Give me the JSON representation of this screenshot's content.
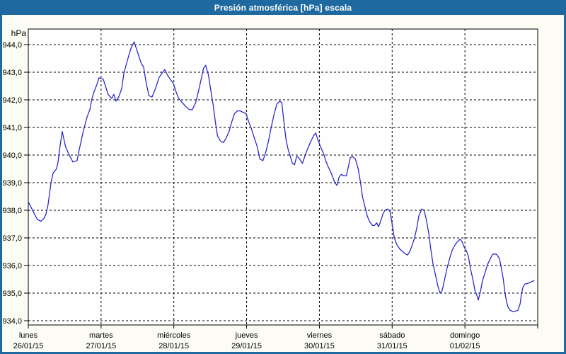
{
  "window": {
    "title": "Presión atmosférica [hPa] escala"
  },
  "colors": {
    "titlebar_bg": "#1e6aa0",
    "frame": "#1e6aa0",
    "content_bg": "#fcfcf4",
    "plot_bg": "#fefefe",
    "line": "#2323c8",
    "grid": "#000000",
    "text": "#000000",
    "title_text": "#ffffff"
  },
  "chart_data": {
    "type": "line",
    "title": "Presión atmosférica [hPa] escala",
    "unit_label": "hPa",
    "x_unit": "hours since lunes 26/01/15 00:00",
    "x_range_hours": [
      0,
      168
    ],
    "ylim": [
      934.0,
      944.0
    ],
    "grid": "dashed",
    "legend": "none",
    "yticks": [
      944,
      943,
      942,
      941,
      940,
      939,
      938,
      937,
      936,
      935,
      934
    ],
    "ytick_labels": [
      "944,0",
      "943,0",
      "942,0",
      "941,0",
      "940,0",
      "939,0",
      "938,0",
      "937,0",
      "936,0",
      "935,0",
      "934,0"
    ],
    "days": [
      {
        "name": "lunes",
        "date": "26/01/15"
      },
      {
        "name": "martes",
        "date": "27/01/15"
      },
      {
        "name": "miércoles",
        "date": "28/01/15"
      },
      {
        "name": "jueves",
        "date": "29/01/15"
      },
      {
        "name": "viernes",
        "date": "30/01/15"
      },
      {
        "name": "sábado",
        "date": "31/01/15"
      },
      {
        "name": "domingo",
        "date": "01/02/15"
      }
    ],
    "series": [
      {
        "name": "Presión atmosférica",
        "color": "#2323c8",
        "points": [
          [
            0,
            938.3
          ],
          [
            1.2,
            938.05
          ],
          [
            2.3,
            937.8
          ],
          [
            3,
            937.67
          ],
          [
            4.2,
            937.6
          ],
          [
            5.1,
            937.7
          ],
          [
            5.8,
            937.85
          ],
          [
            6.5,
            938.2
          ],
          [
            7.5,
            939
          ],
          [
            8.2,
            939.35
          ],
          [
            9.3,
            939.5
          ],
          [
            9.8,
            939.75
          ],
          [
            10.5,
            940.35
          ],
          [
            11.2,
            940.85
          ],
          [
            11.7,
            940.6
          ],
          [
            12.3,
            940.3
          ],
          [
            13.3,
            940.05
          ],
          [
            14,
            939.9
          ],
          [
            14.7,
            939.75
          ],
          [
            16.1,
            939.8
          ],
          [
            16.8,
            940.2
          ],
          [
            17.5,
            940.55
          ],
          [
            18.2,
            940.9
          ],
          [
            18.6,
            941.05
          ],
          [
            19.3,
            941.35
          ],
          [
            20.3,
            941.65
          ],
          [
            21,
            942.05
          ],
          [
            21.7,
            942.3
          ],
          [
            22.6,
            942.55
          ],
          [
            23.3,
            942.8
          ],
          [
            24.7,
            942.75
          ],
          [
            25.6,
            942.45
          ],
          [
            26.3,
            942.2
          ],
          [
            27.5,
            942.05
          ],
          [
            28.2,
            942.2
          ],
          [
            28.9,
            941.95
          ],
          [
            29.8,
            942.1
          ],
          [
            30.8,
            942.4
          ],
          [
            31.5,
            942.95
          ],
          [
            32.6,
            943.4
          ],
          [
            33.8,
            943.85
          ],
          [
            34.9,
            944.1
          ],
          [
            36.1,
            943.7
          ],
          [
            37.3,
            943.3
          ],
          [
            38,
            943.2
          ],
          [
            38.9,
            942.6
          ],
          [
            39.8,
            942.15
          ],
          [
            40.8,
            942.1
          ],
          [
            41.9,
            942.4
          ],
          [
            43.1,
            942.8
          ],
          [
            44.3,
            943
          ],
          [
            45,
            943.1
          ],
          [
            45.9,
            942.9
          ],
          [
            46.8,
            942.75
          ],
          [
            47.8,
            942.6
          ],
          [
            48.7,
            942.3
          ],
          [
            49.6,
            942.05
          ],
          [
            50.8,
            941.9
          ],
          [
            52,
            941.75
          ],
          [
            53.1,
            941.65
          ],
          [
            54.1,
            941.65
          ],
          [
            55.2,
            941.9
          ],
          [
            56.2,
            942.35
          ],
          [
            56.9,
            942.7
          ],
          [
            57.8,
            943.15
          ],
          [
            58.5,
            943.25
          ],
          [
            59.4,
            942.9
          ],
          [
            60.1,
            942.4
          ],
          [
            61,
            941.8
          ],
          [
            61.7,
            941.2
          ],
          [
            62.4,
            940.7
          ],
          [
            63.4,
            940.5
          ],
          [
            64.3,
            940.45
          ],
          [
            65.2,
            940.6
          ],
          [
            66.2,
            940.85
          ],
          [
            67.1,
            941.2
          ],
          [
            68,
            941.5
          ],
          [
            69,
            941.6
          ],
          [
            69.9,
            941.6
          ],
          [
            70.8,
            941.55
          ],
          [
            71.8,
            941.5
          ],
          [
            72.7,
            941.2
          ],
          [
            73.6,
            940.95
          ],
          [
            74.6,
            940.6
          ],
          [
            75.5,
            940.3
          ],
          [
            76.4,
            939.85
          ],
          [
            77.4,
            939.8
          ],
          [
            78.3,
            940.1
          ],
          [
            79.2,
            940.5
          ],
          [
            80.1,
            941
          ],
          [
            81.1,
            941.5
          ],
          [
            82,
            941.85
          ],
          [
            82.9,
            941.95
          ],
          [
            83.6,
            941.9
          ],
          [
            84.3,
            941.2
          ],
          [
            85,
            940.55
          ],
          [
            85.7,
            940.2
          ],
          [
            86.4,
            939.95
          ],
          [
            87.1,
            939.7
          ],
          [
            87.8,
            939.65
          ],
          [
            88.5,
            939.95
          ],
          [
            89.2,
            939.9
          ],
          [
            90.4,
            939.7
          ],
          [
            92,
            940.2
          ],
          [
            93.2,
            940.5
          ],
          [
            94.1,
            940.7
          ],
          [
            94.8,
            940.8
          ],
          [
            95.5,
            940.55
          ],
          [
            96.4,
            940.3
          ],
          [
            97.4,
            940.05
          ],
          [
            98.1,
            939.8
          ],
          [
            98.8,
            939.6
          ],
          [
            99.7,
            939.4
          ],
          [
            100.4,
            939.2
          ],
          [
            101.1,
            939
          ],
          [
            101.8,
            938.9
          ],
          [
            102.5,
            939.2
          ],
          [
            103.2,
            939.3
          ],
          [
            104.1,
            939.25
          ],
          [
            104.9,
            939.25
          ],
          [
            105.6,
            939.6
          ],
          [
            106.2,
            939.9
          ],
          [
            106.9,
            939.95
          ],
          [
            107.9,
            939.85
          ],
          [
            108.8,
            939.5
          ],
          [
            109.5,
            939.05
          ],
          [
            110.2,
            938.5
          ],
          [
            111.2,
            938.05
          ],
          [
            111.8,
            937.8
          ],
          [
            112.5,
            937.6
          ],
          [
            113.5,
            937.45
          ],
          [
            114.2,
            937.45
          ],
          [
            114.9,
            937.55
          ],
          [
            115.5,
            937.4
          ],
          [
            116.2,
            937.6
          ],
          [
            116.9,
            937.85
          ],
          [
            117.6,
            938
          ],
          [
            118.6,
            938.05
          ],
          [
            119.3,
            937.95
          ],
          [
            120,
            937.5
          ],
          [
            120.7,
            937
          ],
          [
            121.6,
            936.75
          ],
          [
            122.5,
            936.6
          ],
          [
            123.5,
            936.5
          ],
          [
            124.4,
            936.42
          ],
          [
            125.1,
            936.38
          ],
          [
            125.8,
            936.5
          ],
          [
            126.5,
            936.7
          ],
          [
            127.4,
            937
          ],
          [
            128.2,
            937.4
          ],
          [
            128.8,
            937.8
          ],
          [
            129.8,
            938.05
          ],
          [
            130.5,
            938
          ],
          [
            131.2,
            937.7
          ],
          [
            132.1,
            937.15
          ],
          [
            132.8,
            936.55
          ],
          [
            133.5,
            936.05
          ],
          [
            134.4,
            935.6
          ],
          [
            135.1,
            935.25
          ],
          [
            135.8,
            935
          ],
          [
            136.5,
            935.1
          ],
          [
            137.5,
            935.6
          ],
          [
            138.2,
            935.95
          ],
          [
            139.1,
            936.3
          ],
          [
            139.8,
            936.55
          ],
          [
            140.5,
            936.7
          ],
          [
            141.4,
            936.85
          ],
          [
            142.4,
            936.95
          ],
          [
            143.1,
            936.85
          ],
          [
            143.8,
            936.65
          ],
          [
            144.4,
            936.55
          ],
          [
            145.1,
            936.35
          ],
          [
            145.8,
            935.9
          ],
          [
            146.6,
            935.5
          ],
          [
            147.3,
            935.1
          ],
          [
            148,
            934.9
          ],
          [
            148.4,
            934.75
          ],
          [
            149.1,
            935.05
          ],
          [
            149.8,
            935.45
          ],
          [
            150.8,
            935.8
          ],
          [
            151.5,
            936.05
          ],
          [
            152.4,
            936.25
          ],
          [
            153.1,
            936.4
          ],
          [
            153.8,
            936.42
          ],
          [
            154.5,
            936.4
          ],
          [
            155.4,
            936.25
          ],
          [
            156.1,
            935.85
          ],
          [
            156.6,
            935.55
          ],
          [
            157.3,
            934.95
          ],
          [
            157.7,
            934.7
          ],
          [
            158.2,
            934.5
          ],
          [
            158.9,
            934.38
          ],
          [
            159.8,
            934.33
          ],
          [
            160.8,
            934.35
          ],
          [
            161.5,
            934.38
          ],
          [
            162.2,
            934.6
          ],
          [
            162.6,
            934.95
          ],
          [
            163.1,
            935.2
          ],
          [
            163.8,
            935.33
          ],
          [
            164.7,
            935.35
          ],
          [
            165.4,
            935.38
          ],
          [
            166.1,
            935.42
          ],
          [
            166.8,
            935.45
          ]
        ]
      }
    ]
  }
}
